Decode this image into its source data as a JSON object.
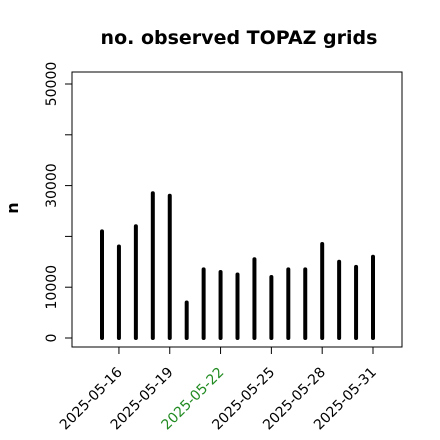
{
  "chart_data": {
    "type": "bar",
    "title": "no. observed TOPAZ grids",
    "xlabel": "",
    "ylabel": "n",
    "ylim": [
      0,
      52000
    ],
    "yticks": [
      0,
      10000,
      20000,
      30000,
      40000,
      50000
    ],
    "ytick_labels": [
      "0",
      "10000",
      "",
      "30000",
      "",
      "50000"
    ],
    "x_dates": [
      "2025-05-15",
      "2025-05-16",
      "2025-05-17",
      "2025-05-18",
      "2025-05-19",
      "2025-05-20",
      "2025-05-21",
      "2025-05-22",
      "2025-05-23",
      "2025-05-24",
      "2025-05-25",
      "2025-05-26",
      "2025-05-27",
      "2025-05-28",
      "2025-05-29",
      "2025-05-30",
      "2025-05-31"
    ],
    "values": [
      21000,
      18000,
      22000,
      28500,
      28000,
      7000,
      13500,
      13000,
      12500,
      15500,
      12000,
      13500,
      13500,
      18500,
      15000,
      14000,
      16000
    ],
    "xtick_labels": [
      {
        "date": "2025-05-16",
        "label": "2025-05-16",
        "color": "#000000"
      },
      {
        "date": "2025-05-19",
        "label": "2025-05-19",
        "color": "#000000"
      },
      {
        "date": "2025-05-22",
        "label": "2025-05-22",
        "color": "#228B22"
      },
      {
        "date": "2025-05-25",
        "label": "2025-05-25",
        "color": "#000000"
      },
      {
        "date": "2025-05-28",
        "label": "2025-05-28",
        "color": "#000000"
      },
      {
        "date": "2025-05-31",
        "label": "2025-05-31",
        "color": "#000000"
      }
    ],
    "grid": false,
    "bar_color": "#000000"
  }
}
